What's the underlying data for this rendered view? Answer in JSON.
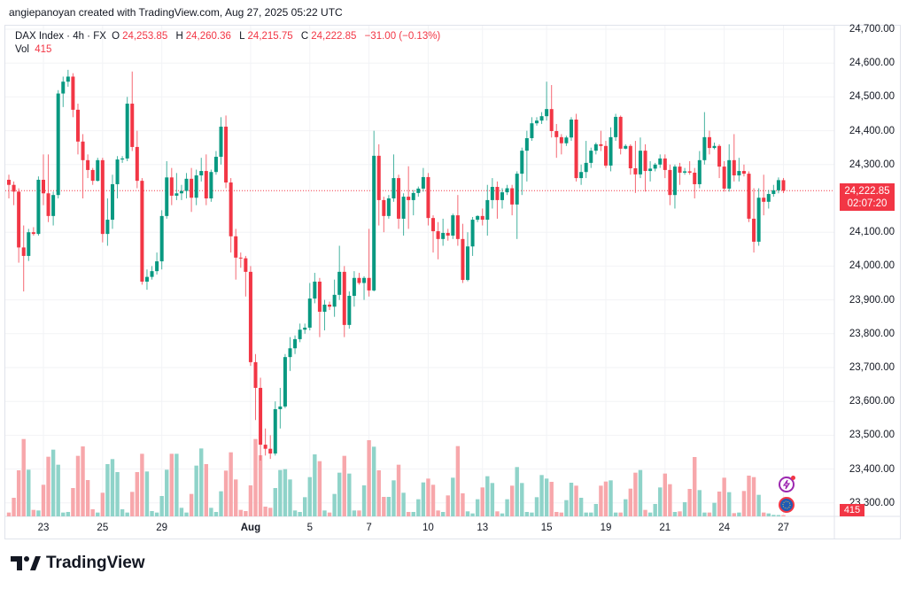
{
  "header": {
    "credit": "angiepanoyan created with TradingView.com, Aug 27, 2025 05:22 UTC",
    "symbol": "DAX Index · 4h · FX",
    "ohlc": {
      "o_label": "O",
      "o": "24,253.85",
      "h_label": "H",
      "h": "24,260.36",
      "l_label": "L",
      "l": "24,215.75",
      "c_label": "C",
      "c": "24,222.85",
      "change": "−31.00 (−0.13%)"
    },
    "vol_label": "Vol",
    "vol_value": "415"
  },
  "price_axis": {
    "labels": [
      "24,700.00",
      "24,600.00",
      "24,500.00",
      "24,400.00",
      "24,300.00",
      "24,100.00",
      "24,000.00",
      "23,900.00",
      "23,800.00",
      "23,700.00",
      "23,600.00",
      "23,500.00",
      "23,400.00",
      "23,300.00"
    ],
    "current_price": "24,222.85",
    "countdown": "02:07:20",
    "volume_badge": "415"
  },
  "time_axis": {
    "labels": [
      "23",
      "25",
      "29",
      "Aug",
      "5",
      "7",
      "10",
      "13",
      "15",
      "19",
      "21",
      "24",
      "27"
    ]
  },
  "footer": {
    "logo_text": "TradingView"
  },
  "colors": {
    "up": "#089981",
    "down": "#f23645",
    "vol_up": "#8fd3c9",
    "vol_down": "#f7a7ab",
    "grid": "#f2f3f6"
  },
  "chart_data": {
    "type": "candlestick",
    "title": "DAX Index · 4h · FX",
    "ylim": [
      23250,
      24730
    ],
    "price_ticks": [
      24700,
      24600,
      24500,
      24400,
      24300,
      24100,
      24000,
      23900,
      23800,
      23700,
      23600,
      23500,
      23400,
      23300
    ],
    "date_ticks": [
      {
        "label": "23",
        "index": 7
      },
      {
        "label": "25",
        "index": 19
      },
      {
        "label": "29",
        "index": 31
      },
      {
        "label": "Aug",
        "index": 49
      },
      {
        "label": "5",
        "index": 61
      },
      {
        "label": "7",
        "index": 73
      },
      {
        "label": "10",
        "index": 85
      },
      {
        "label": "13",
        "index": 96
      },
      {
        "label": "15",
        "index": 109
      },
      {
        "label": "19",
        "index": 121
      },
      {
        "label": "21",
        "index": 133
      },
      {
        "label": "24",
        "index": 145
      },
      {
        "label": "27",
        "index": 157
      }
    ],
    "candles": [
      [
        24255,
        24270,
        24200,
        24240
      ],
      [
        24240,
        24250,
        24180,
        24220
      ],
      [
        24220,
        24230,
        24010,
        24055
      ],
      [
        24055,
        24120,
        23925,
        24030
      ],
      [
        24030,
        24110,
        24015,
        24100
      ],
      [
        24100,
        24115,
        24090,
        24095
      ],
      [
        24095,
        24265,
        24090,
        24255
      ],
      [
        24255,
        24330,
        24180,
        24215
      ],
      [
        24215,
        24330,
        24130,
        24148
      ],
      [
        24148,
        24220,
        24120,
        24210
      ],
      [
        24210,
        24520,
        24200,
        24510
      ],
      [
        24510,
        24560,
        24470,
        24545
      ],
      [
        24545,
        24580,
        24530,
        24560
      ],
      [
        24560,
        24570,
        24440,
        24462
      ],
      [
        24462,
        24480,
        24330,
        24368
      ],
      [
        24368,
        24390,
        24200,
        24313
      ],
      [
        24313,
        24330,
        24260,
        24284
      ],
      [
        24284,
        24290,
        24240,
        24252
      ],
      [
        24252,
        24320,
        24250,
        24313
      ],
      [
        24313,
        24320,
        24070,
        24095
      ],
      [
        24095,
        24200,
        24060,
        24137
      ],
      [
        24137,
        24270,
        24110,
        24242
      ],
      [
        24242,
        24325,
        24200,
        24315
      ],
      [
        24315,
        24325,
        24305,
        24318
      ],
      [
        24318,
        24500,
        24310,
        24480
      ],
      [
        24480,
        24575,
        24340,
        24352
      ],
      [
        24352,
        24400,
        24230,
        24252
      ],
      [
        24252,
        24260,
        23945,
        23954
      ],
      [
        23954,
        23990,
        23930,
        23968
      ],
      [
        23968,
        24000,
        23960,
        23985
      ],
      [
        23985,
        24040,
        23975,
        24014
      ],
      [
        24014,
        24165,
        23990,
        24148
      ],
      [
        24148,
        24310,
        24140,
        24262
      ],
      [
        24262,
        24290,
        24180,
        24208
      ],
      [
        24208,
        24275,
        24195,
        24215
      ],
      [
        24215,
        24240,
        24195,
        24222
      ],
      [
        24222,
        24275,
        24200,
        24258
      ],
      [
        24258,
        24290,
        24160,
        24202
      ],
      [
        24202,
        24285,
        24180,
        24268
      ],
      [
        24268,
        24320,
        24250,
        24281
      ],
      [
        24281,
        24330,
        24180,
        24200
      ],
      [
        24200,
        24285,
        24190,
        24278
      ],
      [
        24278,
        24340,
        24270,
        24323
      ],
      [
        24323,
        24440,
        24300,
        24412
      ],
      [
        24412,
        24445,
        24230,
        24247
      ],
      [
        24247,
        24260,
        24040,
        24088
      ],
      [
        24088,
        24110,
        23960,
        24025
      ],
      [
        24025,
        24040,
        23995,
        24023
      ],
      [
        24023,
        24030,
        23910,
        23983
      ],
      [
        23983,
        24000,
        23705,
        23716
      ],
      [
        23716,
        23740,
        23545,
        23640
      ],
      [
        23640,
        23670,
        23425,
        23472
      ],
      [
        23472,
        23520,
        23440,
        23460
      ],
      [
        23460,
        23500,
        23430,
        23446
      ],
      [
        23446,
        23600,
        23440,
        23577
      ],
      [
        23577,
        23640,
        23520,
        23585
      ],
      [
        23585,
        23740,
        23580,
        23731
      ],
      [
        23731,
        23790,
        23690,
        23757
      ],
      [
        23757,
        23795,
        23740,
        23784
      ],
      [
        23784,
        23830,
        23775,
        23812
      ],
      [
        23812,
        23830,
        23800,
        23818
      ],
      [
        23818,
        23950,
        23810,
        23904
      ],
      [
        23904,
        23980,
        23890,
        23954
      ],
      [
        23954,
        23965,
        23790,
        23865
      ],
      [
        23865,
        23900,
        23810,
        23886
      ],
      [
        23886,
        23895,
        23870,
        23880
      ],
      [
        23880,
        23960,
        23850,
        23915
      ],
      [
        23915,
        24060,
        23900,
        23983
      ],
      [
        23983,
        24000,
        23790,
        23826
      ],
      [
        23826,
        23925,
        23815,
        23912
      ],
      [
        23912,
        23985,
        23880,
        23965
      ],
      [
        23965,
        23980,
        23945,
        23950
      ],
      [
        23950,
        23970,
        23900,
        23965
      ],
      [
        23965,
        24110,
        23910,
        23928
      ],
      [
        23928,
        24400,
        23925,
        24326
      ],
      [
        24326,
        24360,
        24120,
        24195
      ],
      [
        24195,
        24205,
        24100,
        24148
      ],
      [
        24148,
        24210,
        24140,
        24200
      ],
      [
        24200,
        24330,
        24190,
        24260
      ],
      [
        24260,
        24270,
        24110,
        24140
      ],
      [
        24140,
        24215,
        24090,
        24205
      ],
      [
        24205,
        24295,
        24110,
        24195
      ],
      [
        24195,
        24225,
        24150,
        24216
      ],
      [
        24216,
        24235,
        24205,
        24229
      ],
      [
        24229,
        24290,
        24220,
        24263
      ],
      [
        24263,
        24275,
        24120,
        24142
      ],
      [
        24142,
        24150,
        24040,
        24103
      ],
      [
        24103,
        24130,
        24020,
        24080
      ],
      [
        24080,
        24140,
        24060,
        24098
      ],
      [
        24098,
        24110,
        24075,
        24090
      ],
      [
        24090,
        24155,
        24080,
        24150
      ],
      [
        24150,
        24210,
        24060,
        24080
      ],
      [
        24080,
        24125,
        23950,
        23959
      ],
      [
        23959,
        24100,
        23955,
        24058
      ],
      [
        24058,
        24145,
        24030,
        24137
      ],
      [
        24137,
        24150,
        24130,
        24148
      ],
      [
        24148,
        24170,
        24120,
        24137
      ],
      [
        24137,
        24240,
        24090,
        24195
      ],
      [
        24195,
        24260,
        24170,
        24234
      ],
      [
        24234,
        24250,
        24140,
        24195
      ],
      [
        24195,
        24230,
        24170,
        24218
      ],
      [
        24218,
        24240,
        24210,
        24230
      ],
      [
        24230,
        24240,
        24150,
        24182
      ],
      [
        24182,
        24280,
        24080,
        24273
      ],
      [
        24273,
        24350,
        24210,
        24341
      ],
      [
        24341,
        24400,
        24250,
        24378
      ],
      [
        24378,
        24440,
        24370,
        24422
      ],
      [
        24422,
        24440,
        24415,
        24430
      ],
      [
        24430,
        24455,
        24420,
        24443
      ],
      [
        24443,
        24545,
        24430,
        24464
      ],
      [
        24464,
        24535,
        24380,
        24399
      ],
      [
        24399,
        24420,
        24320,
        24381
      ],
      [
        24381,
        24390,
        24330,
        24363
      ],
      [
        24363,
        24385,
        24355,
        24380
      ],
      [
        24380,
        24440,
        24370,
        24433
      ],
      [
        24433,
        24450,
        24250,
        24260
      ],
      [
        24260,
        24300,
        24240,
        24278
      ],
      [
        24278,
        24370,
        24260,
        24305
      ],
      [
        24305,
        24350,
        24290,
        24341
      ],
      [
        24341,
        24365,
        24330,
        24360
      ],
      [
        24360,
        24400,
        24340,
        24355
      ],
      [
        24355,
        24370,
        24290,
        24297
      ],
      [
        24297,
        24410,
        24280,
        24381
      ],
      [
        24381,
        24450,
        24370,
        24441
      ],
      [
        24441,
        24445,
        24330,
        24347
      ],
      [
        24347,
        24360,
        24345,
        24355
      ],
      [
        24355,
        24360,
        24270,
        24289
      ],
      [
        24289,
        24370,
        24216,
        24271
      ],
      [
        24271,
        24380,
        24260,
        24341
      ],
      [
        24341,
        24360,
        24220,
        24281
      ],
      [
        24281,
        24310,
        24250,
        24288
      ],
      [
        24288,
        24305,
        24280,
        24300
      ],
      [
        24300,
        24330,
        24290,
        24318
      ],
      [
        24318,
        24330,
        24260,
        24284
      ],
      [
        24284,
        24300,
        24180,
        24210
      ],
      [
        24210,
        24300,
        24170,
        24294
      ],
      [
        24294,
        24305,
        24240,
        24276
      ],
      [
        24276,
        24290,
        24270,
        24280
      ],
      [
        24280,
        24310,
        24270,
        24276
      ],
      [
        24276,
        24290,
        24200,
        24242
      ],
      [
        24242,
        24340,
        24230,
        24313
      ],
      [
        24313,
        24455,
        24300,
        24381
      ],
      [
        24381,
        24400,
        24330,
        24349
      ],
      [
        24349,
        24365,
        24345,
        24355
      ],
      [
        24355,
        24360,
        24260,
        24294
      ],
      [
        24294,
        24310,
        24220,
        24229
      ],
      [
        24229,
        24360,
        24220,
        24313
      ],
      [
        24313,
        24390,
        24250,
        24268
      ],
      [
        24268,
        24320,
        24250,
        24281
      ],
      [
        24281,
        24300,
        24265,
        24273
      ],
      [
        24273,
        24280,
        24130,
        24140
      ],
      [
        24140,
        24230,
        24040,
        24072
      ],
      [
        24072,
        24230,
        24060,
        24202
      ],
      [
        24202,
        24270,
        24150,
        24190
      ],
      [
        24190,
        24225,
        24170,
        24213
      ],
      [
        24213,
        24240,
        24205,
        24224
      ],
      [
        24224,
        24262,
        24215,
        24254
      ],
      [
        24253.85,
        24260.36,
        24215.75,
        24222.85
      ]
    ],
    "volume": [
      1300,
      6300,
      15600,
      26200,
      15800,
      2200,
      2000,
      10700,
      20200,
      22600,
      17500,
      1300,
      1500,
      9600,
      20500,
      23700,
      12300,
      2400,
      1300,
      8000,
      17700,
      19400,
      15000,
      2400,
      1300,
      8300,
      15000,
      21200,
      15200,
      1800,
      1300,
      6900,
      15800,
      21200,
      21200,
      2900,
      1300,
      7600,
      17200,
      23000,
      17700,
      2900,
      1500,
      8500,
      15500,
      21700,
      12500,
      2200,
      1800,
      10500,
      26200,
      20700,
      3300,
      2900,
      9600,
      15700,
      16000,
      12500,
      2000,
      1500,
      6500,
      13300,
      21000,
      18700,
      2000,
      1300,
      7600,
      14800,
      20500,
      14500,
      2000,
      2000,
      10500,
      25800,
      23600,
      15600,
      6600,
      6600,
      12200,
      17500,
      8000,
      1500,
      1500,
      5800,
      11500,
      12800,
      10700,
      2000,
      1500,
      7100,
      13100,
      23800,
      7800,
      1700,
      1000,
      5800,
      9800,
      13600,
      11300,
      1700,
      1000,
      5800,
      10400,
      16700,
      11300,
      1500,
      1300,
      6500,
      14000,
      12800,
      11700,
      1500,
      1300,
      5500,
      11400,
      10400,
      6300,
      1300,
      1300,
      4200,
      10400,
      11800,
      12200,
      1300,
      1300,
      5800,
      9400,
      14800,
      15700,
      2200,
      1300,
      4200,
      9800,
      14500,
      10900,
      1500,
      1700,
      4800,
      9300,
      20100,
      8900,
      1300,
      1300,
      4600,
      8400,
      13100,
      8200,
      1100,
      1300,
      8600,
      13800,
      13300,
      7300,
      1300,
      1000,
      500,
      450,
      415
    ]
  }
}
